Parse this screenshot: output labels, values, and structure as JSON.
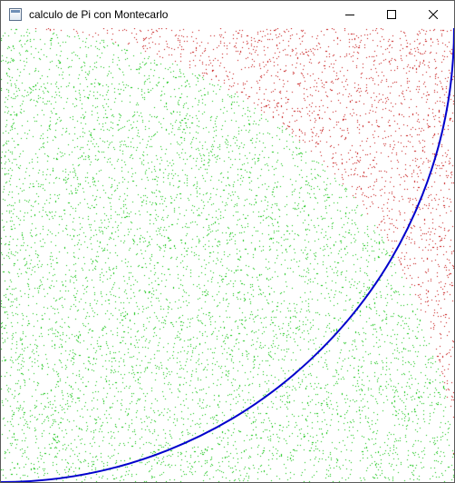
{
  "window": {
    "title": "calculo de Pi con Montecarlo",
    "icon": "app-window-icon",
    "controls": [
      "minimize-icon",
      "maximize-icon",
      "close-icon"
    ]
  },
  "plot": {
    "inside_color": "#00c000",
    "outside_color": "#c00000",
    "arc_color": "#0000cc",
    "background": "#ffffff"
  }
}
